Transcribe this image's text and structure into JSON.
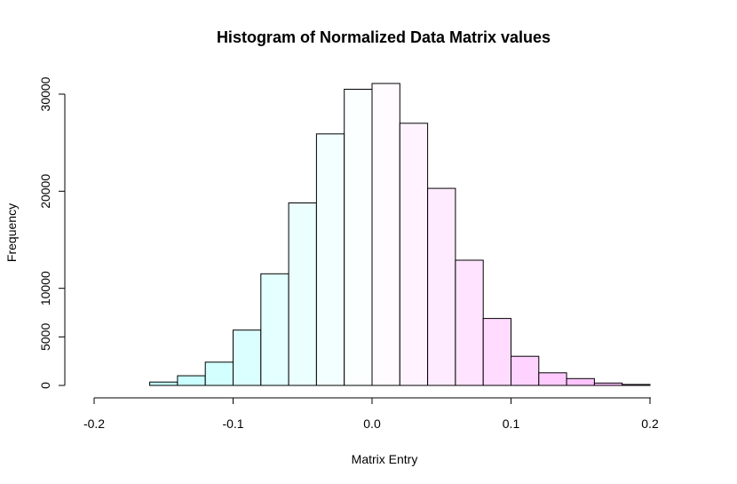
{
  "chart_data": {
    "type": "bar",
    "title": "Histogram of Normalized Data Matrix values",
    "xlabel": "Matrix Entry",
    "ylabel": "Frequency",
    "xlim": [
      -0.2,
      0.22
    ],
    "ylim": [
      0,
      32000
    ],
    "x_ticks": [
      -0.2,
      -0.1,
      0.0,
      0.1,
      0.2
    ],
    "x_tick_labels": [
      "-0.2",
      "-0.1",
      "0.0",
      "0.1",
      "0.2"
    ],
    "y_ticks": [
      0,
      5000,
      10000,
      20000,
      30000
    ],
    "y_tick_labels": [
      "0",
      "5000",
      "10000",
      "20000",
      "30000"
    ],
    "bin_width": 0.02,
    "bins": [
      {
        "x0": -0.16,
        "x1": -0.14,
        "count": 350
      },
      {
        "x0": -0.14,
        "x1": -0.12,
        "count": 1000
      },
      {
        "x0": -0.12,
        "x1": -0.1,
        "count": 2400
      },
      {
        "x0": -0.1,
        "x1": -0.08,
        "count": 5700
      },
      {
        "x0": -0.08,
        "x1": -0.06,
        "count": 11500
      },
      {
        "x0": -0.06,
        "x1": -0.04,
        "count": 18800
      },
      {
        "x0": -0.04,
        "x1": -0.02,
        "count": 25900
      },
      {
        "x0": -0.02,
        "x1": 0.0,
        "count": 30500
      },
      {
        "x0": 0.0,
        "x1": 0.02,
        "count": 31100
      },
      {
        "x0": 0.02,
        "x1": 0.04,
        "count": 27000
      },
      {
        "x0": 0.04,
        "x1": 0.06,
        "count": 20300
      },
      {
        "x0": 0.06,
        "x1": 0.08,
        "count": 12900
      },
      {
        "x0": 0.08,
        "x1": 0.1,
        "count": 6900
      },
      {
        "x0": 0.1,
        "x1": 0.12,
        "count": 3000
      },
      {
        "x0": 0.12,
        "x1": 0.14,
        "count": 1300
      },
      {
        "x0": 0.14,
        "x1": 0.16,
        "count": 700
      },
      {
        "x0": 0.16,
        "x1": 0.18,
        "count": 250
      },
      {
        "x0": 0.18,
        "x1": 0.2,
        "count": 100
      }
    ],
    "colors": {
      "cyan_full": "#b3ffff",
      "white_mid": "#ffffff",
      "magenta_full": "#ffb3ff",
      "bar_stroke": "#000000"
    },
    "grid": false,
    "legend": "none"
  }
}
